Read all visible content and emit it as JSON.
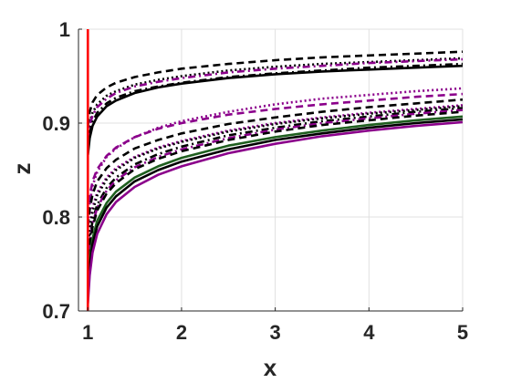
{
  "chart_data": {
    "type": "line",
    "title": "",
    "xlabel": "x",
    "ylabel": "z",
    "xlim": [
      0.9,
      5
    ],
    "ylim": [
      0.7,
      1
    ],
    "xticks": [
      1,
      2,
      3,
      4,
      5
    ],
    "yticks": [
      0.7,
      0.8,
      0.9,
      1
    ],
    "xtick_labels": [
      "1",
      "2",
      "3",
      "4",
      "5"
    ],
    "ytick_labels": [
      "0.7",
      "0.8",
      "0.9",
      "1"
    ],
    "grid": true,
    "legend": "none",
    "x": [
      1.0,
      1.02,
      1.05,
      1.1,
      1.2,
      1.3,
      1.5,
      1.75,
      2,
      2.5,
      3,
      3.5,
      4,
      4.5,
      5
    ],
    "vertical_line": {
      "x": 1,
      "color": "#ff0000"
    },
    "series": [
      {
        "color": "#000000",
        "style": "dashed",
        "values": [
          0.897,
          0.912,
          0.922,
          0.93,
          0.938,
          0.943,
          0.949,
          0.954,
          0.958,
          0.963,
          0.967,
          0.97,
          0.972,
          0.974,
          0.976
        ]
      },
      {
        "color": "#000000",
        "style": "dotted",
        "values": [
          0.886,
          0.901,
          0.911,
          0.92,
          0.929,
          0.934,
          0.941,
          0.946,
          0.95,
          0.956,
          0.96,
          0.963,
          0.965,
          0.967,
          0.969
        ]
      },
      {
        "color": "#8b008b",
        "style": "dashdot",
        "values": [
          0.883,
          0.898,
          0.908,
          0.917,
          0.926,
          0.932,
          0.939,
          0.944,
          0.948,
          0.954,
          0.958,
          0.961,
          0.964,
          0.966,
          0.968
        ]
      },
      {
        "color": "#000000",
        "style": "dashdot",
        "values": [
          0.872,
          0.889,
          0.901,
          0.911,
          0.921,
          0.927,
          0.934,
          0.939,
          0.943,
          0.949,
          0.953,
          0.956,
          0.959,
          0.961,
          0.963
        ]
      },
      {
        "color": "#000000",
        "style": "solid",
        "values": [
          0.866,
          0.884,
          0.897,
          0.907,
          0.918,
          0.924,
          0.932,
          0.938,
          0.942,
          0.948,
          0.952,
          0.955,
          0.957,
          0.959,
          0.961
        ]
      },
      {
        "color": "#8b008b",
        "style": "dotted",
        "values": [
          0.794,
          0.815,
          0.833,
          0.848,
          0.864,
          0.873,
          0.885,
          0.895,
          0.902,
          0.912,
          0.92,
          0.926,
          0.93,
          0.934,
          0.937
        ]
      },
      {
        "color": "#8b008b",
        "style": "dashed",
        "values": [
          0.803,
          0.822,
          0.838,
          0.851,
          0.865,
          0.874,
          0.885,
          0.894,
          0.9,
          0.909,
          0.915,
          0.92,
          0.924,
          0.928,
          0.931
        ]
      },
      {
        "color": "#000000",
        "style": "dashed",
        "values": [
          0.79,
          0.808,
          0.824,
          0.838,
          0.852,
          0.861,
          0.873,
          0.882,
          0.889,
          0.899,
          0.906,
          0.912,
          0.917,
          0.921,
          0.925
        ]
      },
      {
        "color": "#8b008b",
        "style": "dotted",
        "values": [
          0.765,
          0.79,
          0.81,
          0.826,
          0.842,
          0.852,
          0.864,
          0.874,
          0.881,
          0.892,
          0.9,
          0.906,
          0.911,
          0.915,
          0.919
        ]
      },
      {
        "color": "#000000",
        "style": "dotted",
        "values": [
          0.76,
          0.786,
          0.806,
          0.823,
          0.84,
          0.85,
          0.863,
          0.873,
          0.88,
          0.891,
          0.899,
          0.905,
          0.91,
          0.914,
          0.918
        ]
      },
      {
        "color": "#000000",
        "style": "dashdot",
        "values": [
          0.752,
          0.776,
          0.796,
          0.813,
          0.831,
          0.842,
          0.856,
          0.867,
          0.875,
          0.887,
          0.895,
          0.902,
          0.907,
          0.912,
          0.916
        ]
      },
      {
        "color": "#8b008b",
        "style": "dashdot",
        "values": [
          0.748,
          0.772,
          0.792,
          0.81,
          0.828,
          0.839,
          0.853,
          0.864,
          0.872,
          0.884,
          0.893,
          0.9,
          0.905,
          0.91,
          0.914
        ]
      },
      {
        "color": "#000000",
        "style": "dashed",
        "values": [
          0.745,
          0.769,
          0.789,
          0.807,
          0.825,
          0.836,
          0.851,
          0.862,
          0.87,
          0.882,
          0.891,
          0.898,
          0.903,
          0.908,
          0.912
        ]
      },
      {
        "color": "#1f5f1f",
        "style": "solid",
        "values": [
          0.728,
          0.755,
          0.777,
          0.796,
          0.815,
          0.827,
          0.842,
          0.854,
          0.863,
          0.876,
          0.885,
          0.892,
          0.898,
          0.903,
          0.907
        ]
      },
      {
        "color": "#000000",
        "style": "solid",
        "values": [
          0.72,
          0.748,
          0.771,
          0.79,
          0.81,
          0.822,
          0.838,
          0.85,
          0.859,
          0.872,
          0.882,
          0.889,
          0.895,
          0.9,
          0.904
        ]
      },
      {
        "color": "#8b008b",
        "style": "solid",
        "values": [
          0.708,
          0.738,
          0.762,
          0.782,
          0.803,
          0.816,
          0.832,
          0.845,
          0.854,
          0.868,
          0.878,
          0.886,
          0.892,
          0.897,
          0.901
        ]
      }
    ]
  }
}
